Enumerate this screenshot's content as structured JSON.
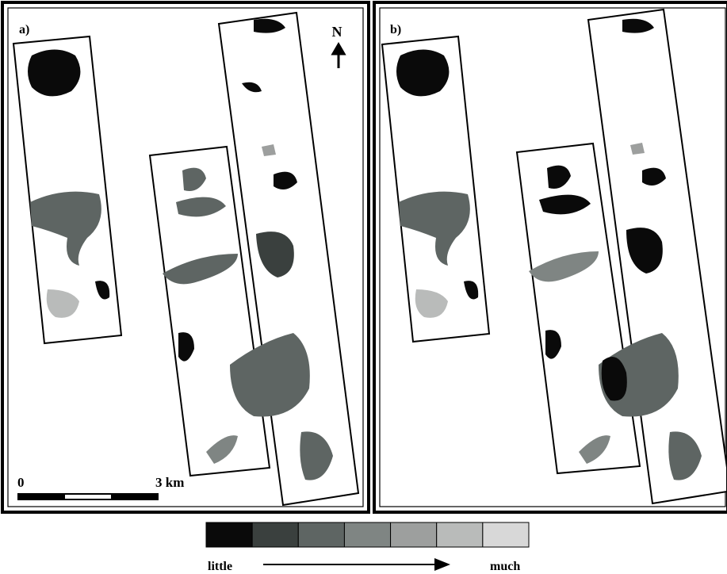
{
  "panels": [
    {
      "label": "a)"
    },
    {
      "label": "b)"
    }
  ],
  "north_label": "N",
  "scale_bar": {
    "start_label": "0",
    "end_label": "3 km"
  },
  "legend": {
    "colors": [
      "#0a0a0a",
      "#3a403e",
      "#5e6563",
      "#7f8583",
      "#9d9f9e",
      "#b9bbba",
      "#d8d8d8"
    ],
    "low_label": "little",
    "high_label": "much"
  }
}
